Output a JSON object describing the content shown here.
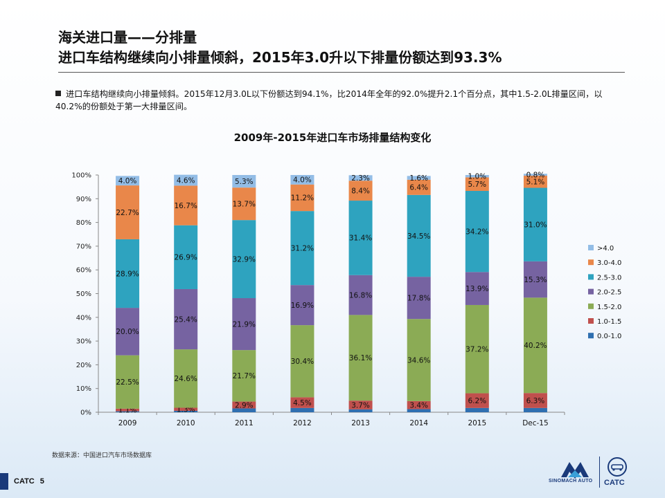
{
  "header": {
    "title_line1": "海关进口量——分排量",
    "title_line2": "进口车结构继续向小排量倾斜，2015年3.0升以下排量份额达到93.3%"
  },
  "bullet": {
    "text": "进口车结构继续向小排量倾斜。2015年12月3.0L以下份额达到94.1%，比2014年全年的92.0%提升2.1个百分点，其中1.5-2.0L排量区间，以40.2%的份额处于第一大排量区间。"
  },
  "chart_data": {
    "type": "bar",
    "stacked": true,
    "title": "2009年-2015年进口车市场排量结构变化",
    "categories": [
      "2009",
      "2010",
      "2011",
      "2012",
      "2013",
      "2014",
      "2015",
      "Dec-15"
    ],
    "y_ticks": [
      "0%",
      "10%",
      "20%",
      "30%",
      "40%",
      "50%",
      "60%",
      "70%",
      "80%",
      "90%",
      "100%"
    ],
    "ylim": [
      0,
      100
    ],
    "legend_position": "right",
    "series": [
      {
        "name": "0.0-1.0",
        "color": "#2f6fb0",
        "values": [
          0.4,
          0.6,
          1.6,
          1.8,
          1.2,
          1.3,
          1.8,
          1.8
        ],
        "labels": [
          "",
          "",
          "",
          "",
          "",
          "",
          "",
          ""
        ]
      },
      {
        "name": "1.0-1.5",
        "color": "#c0504d",
        "values": [
          1.1,
          1.3,
          2.9,
          4.5,
          3.7,
          3.4,
          6.2,
          6.3
        ],
        "labels": [
          "1.1%",
          "1.3%",
          "2.9%",
          "4.5%",
          "3.7%",
          "3.4%",
          "6.2%",
          "6.3%"
        ]
      },
      {
        "name": "1.5-2.0",
        "color": "#8bab55",
        "values": [
          22.5,
          24.6,
          21.7,
          30.4,
          36.1,
          34.6,
          37.2,
          40.2
        ],
        "labels": [
          "22.5%",
          "24.6%",
          "21.7%",
          "30.4%",
          "36.1%",
          "34.6%",
          "37.2%",
          "40.2%"
        ]
      },
      {
        "name": "2.0-2.5",
        "color": "#7663a1",
        "values": [
          20.0,
          25.4,
          21.9,
          16.9,
          16.8,
          17.8,
          13.9,
          15.3
        ],
        "labels": [
          "20.0%",
          "25.4%",
          "21.9%",
          "16.9%",
          "16.8%",
          "17.8%",
          "13.9%",
          "15.3%"
        ]
      },
      {
        "name": "2.5-3.0",
        "color": "#2ea3bf",
        "values": [
          28.9,
          26.9,
          32.9,
          31.2,
          31.4,
          34.5,
          34.2,
          31.0
        ],
        "labels": [
          "28.9%",
          "26.9%",
          "32.9%",
          "31.2%",
          "31.4%",
          "34.5%",
          "34.2%",
          "31.0%"
        ]
      },
      {
        "name": "3.0-4.0",
        "color": "#e9874a",
        "values": [
          22.7,
          16.7,
          13.7,
          11.2,
          8.4,
          6.4,
          5.7,
          5.1
        ],
        "labels": [
          "22.7%",
          "16.7%",
          "13.7%",
          "11.2%",
          "8.4%",
          "6.4%",
          "5.7%",
          "5.1%"
        ]
      },
      {
        "name": ">4.0",
        "color": "#93bde6",
        "values": [
          4.0,
          4.6,
          5.3,
          4.0,
          2.3,
          1.6,
          1.0,
          0.8
        ],
        "labels": [
          "4.0%",
          "4.6%",
          "5.3%",
          "4.0%",
          "2.3%",
          "1.6%",
          "1.0%",
          "0.8%"
        ]
      }
    ]
  },
  "source": "数据来源：中国进口汽车市场数据库",
  "footer": {
    "brand": "CATC",
    "page_number": "5",
    "logo_left_text": "SINOMACH AUTO",
    "logo_right_text": "CATC"
  }
}
